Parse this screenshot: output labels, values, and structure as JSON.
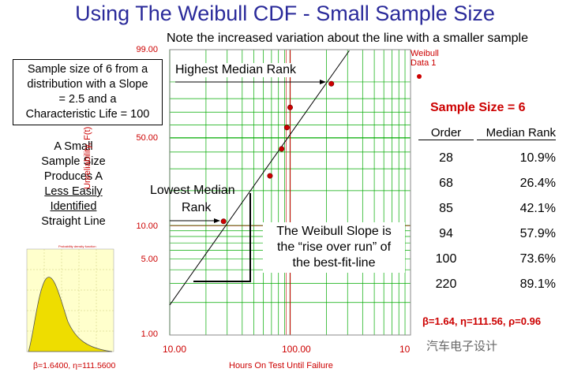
{
  "title": "Using The Weibull CDF - Small Sample Size",
  "subtitle": "Note the increased variation about the line with a smaller sample",
  "info_box": {
    "line1": "Sample size of 6 from a",
    "line2": "distribution with a  Slope",
    "line3": "= 2.5 and a",
    "line4": "Characteristic Life = 100"
  },
  "left_note": {
    "line1": "A Small",
    "line2": "Sample Size",
    "line3": "Produces A",
    "line4": "Less Easily",
    "line5": "Identified",
    "line6": "Straight Line"
  },
  "annotations": {
    "highest": "Highest Median Rank",
    "lowest_line1": "Lowest Median",
    "lowest_line2": "Rank",
    "slope_line1": "The Weibull Slope is",
    "slope_line2": "the “rise over run” of",
    "slope_line3": "the best-fit-line"
  },
  "legend": {
    "line1": "Weibull",
    "line2": "Data 1"
  },
  "sample_size_title": "Sample Size = 6",
  "table": {
    "headers": [
      "Order",
      "Median Rank"
    ],
    "rows": [
      [
        "28",
        "10.9%"
      ],
      [
        "68",
        "26.4%"
      ],
      [
        "85",
        "42.1%"
      ],
      [
        "94",
        "57.9%"
      ],
      [
        "100",
        "73.6%"
      ],
      [
        "220",
        "89.1%"
      ]
    ]
  },
  "params_right": "β=1.64, η=111.56,  ρ=0.96",
  "params_left": "β=1.6400, η=111.5600",
  "watermark": "汽车电子设计",
  "chart_data": {
    "type": "scatter",
    "title": "",
    "xlabel": "Hours On Test Until Failure",
    "ylabel": "Unreliability, F(t)",
    "x_scale": "log",
    "y_scale": "weibull",
    "xlim": [
      10,
      1000
    ],
    "ylim": [
      1,
      99
    ],
    "x_ticks": [
      "10.00",
      "100.00",
      "10"
    ],
    "y_ticks": [
      "99.00",
      "50.00",
      "10.00",
      "5.00",
      "1.00"
    ],
    "points": [
      {
        "x": 28,
        "y": 10.9
      },
      {
        "x": 68,
        "y": 26.4
      },
      {
        "x": 85,
        "y": 42.1
      },
      {
        "x": 94,
        "y": 57.9
      },
      {
        "x": 100,
        "y": 73.6
      },
      {
        "x": 220,
        "y": 89.1
      }
    ],
    "fit_line": {
      "beta": 1.64,
      "eta": 111.56
    },
    "marker_color": "#cc0000",
    "grid": true,
    "grid_color": "#00aa00"
  }
}
